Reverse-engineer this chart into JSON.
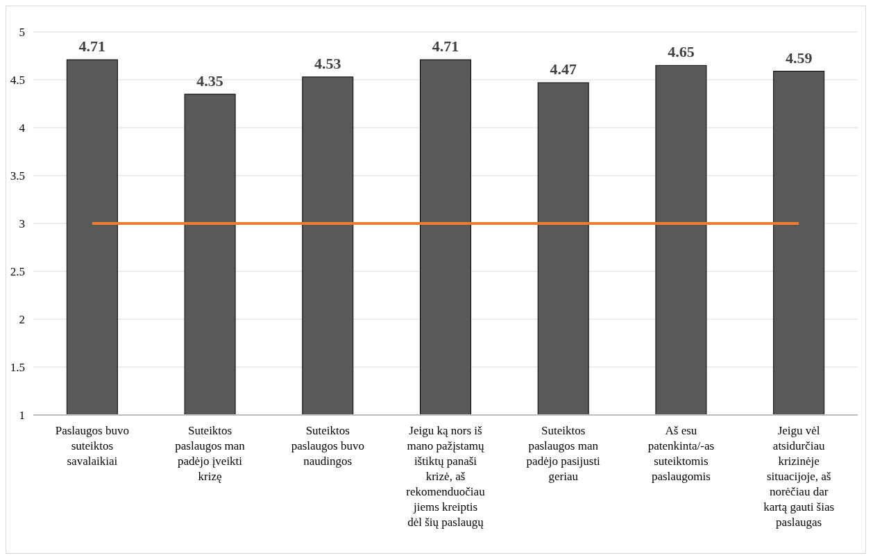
{
  "chart_data": {
    "type": "bar",
    "categories": [
      "Paslaugos buvo suteiktos savalaikiai",
      "Suteiktos paslaugos man padėjo įveikti krizę",
      "Suteiktos paslaugos buvo naudingos",
      "Jeigu ką nors iš mano pažįstamų ištiktų panaši krizė, aš rekomenduočiau jiems kreiptis dėl šių paslaugų",
      "Suteiktos paslaugos man padėjo pasijusti geriau",
      "Aš esu patenkinta/-as suteiktomis paslaugomis",
      "Jeigu vėl atsidurčiau krizinėje situacijoje, aš norėčiau dar kartą gauti šias paslaugas"
    ],
    "series": [
      {
        "color": "#595959",
        "values": [
          4.71,
          4.35,
          4.53,
          4.71,
          4.47,
          4.65,
          4.59
        ],
        "value_labels": [
          "4.71",
          "4.35",
          "4.53",
          "4.71",
          "4.47",
          "4.65",
          "4.59"
        ]
      },
      {
        "type": "line",
        "color": "#ed7d31",
        "values": [
          3,
          3,
          3,
          3,
          3,
          3,
          3
        ]
      }
    ],
    "ylim": [
      1,
      5
    ],
    "yticks": [
      1,
      1.5,
      2,
      2.5,
      3,
      3.5,
      4,
      4.5,
      5
    ],
    "grid": "y",
    "marker": "none"
  }
}
